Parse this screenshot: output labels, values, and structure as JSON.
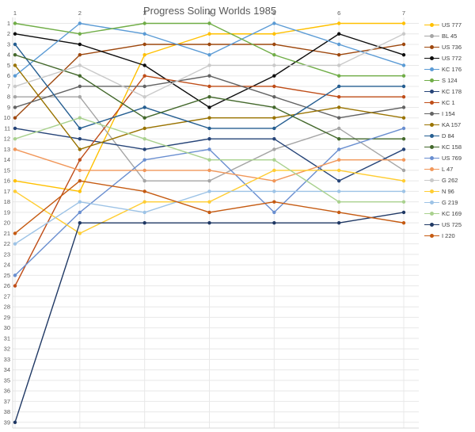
{
  "chart_data": {
    "type": "line",
    "title": "Progress Soling Worlds 1985",
    "xlabel": "",
    "ylabel": "",
    "categories": [
      "1",
      "2",
      "3",
      "4",
      "5",
      "6",
      "7"
    ],
    "y_axis": {
      "min": 1,
      "max": 39,
      "step": 1,
      "inverted": true,
      "meaning": "finishing position (1 = best)"
    },
    "grid": true,
    "legend_position": "right",
    "series": [
      {
        "name": "US 777",
        "color": "#FFC000",
        "values": [
          16,
          17,
          4,
          2,
          2,
          1,
          1
        ]
      },
      {
        "name": "BL 45",
        "color": "#A5A5A5",
        "values": [
          8,
          8,
          16,
          16,
          13,
          11,
          15
        ]
      },
      {
        "name": "US 736",
        "color": "#9E480E",
        "values": [
          10,
          4,
          3,
          3,
          3,
          4,
          3
        ]
      },
      {
        "name": "US 772",
        "color": "#0D0D0D",
        "values": [
          2,
          3,
          5,
          9,
          6,
          2,
          4
        ]
      },
      {
        "name": "KC 176",
        "color": "#5B9BD5",
        "values": [
          6,
          1,
          2,
          4,
          1,
          3,
          5
        ]
      },
      {
        "name": "S 124",
        "color": "#70AD47",
        "values": [
          1,
          2,
          1,
          1,
          4,
          6,
          6
        ]
      },
      {
        "name": "KC 178",
        "color": "#264478",
        "values": [
          11,
          12,
          13,
          12,
          12,
          16,
          13
        ]
      },
      {
        "name": "KC 1",
        "color": "#BF4D18",
        "values": [
          26,
          14,
          6,
          7,
          7,
          8,
          8
        ]
      },
      {
        "name": "I 154",
        "color": "#636363",
        "values": [
          9,
          7,
          7,
          6,
          8,
          10,
          9
        ]
      },
      {
        "name": "KA 157",
        "color": "#997300",
        "values": [
          5,
          13,
          11,
          10,
          10,
          9,
          10
        ]
      },
      {
        "name": "D 84",
        "color": "#255E91",
        "values": [
          3,
          11,
          9,
          11,
          11,
          7,
          7
        ]
      },
      {
        "name": "KC 158",
        "color": "#43682B",
        "values": [
          4,
          6,
          10,
          8,
          9,
          12,
          12
        ]
      },
      {
        "name": "US 769",
        "color": "#698ED0",
        "values": [
          25,
          19,
          14,
          13,
          19,
          13,
          11
        ]
      },
      {
        "name": "L 47",
        "color": "#F1975A",
        "values": [
          13,
          15,
          15,
          15,
          16,
          14,
          14
        ]
      },
      {
        "name": "G 262",
        "color": "#C9C9C9",
        "values": [
          7,
          5,
          8,
          5,
          5,
          5,
          2
        ]
      },
      {
        "name": "N 96",
        "color": "#FFCD33",
        "values": [
          17,
          21,
          18,
          18,
          15,
          15,
          16
        ]
      },
      {
        "name": "G 219",
        "color": "#9DC3E6",
        "values": [
          22,
          18,
          19,
          17,
          17,
          17,
          17
        ]
      },
      {
        "name": "KC 169",
        "color": "#A9D18E",
        "values": [
          12,
          10,
          12,
          14,
          14,
          18,
          18
        ]
      },
      {
        "name": "US 725",
        "color": "#1F3864",
        "values": [
          39,
          20,
          20,
          20,
          20,
          20,
          19
        ]
      },
      {
        "name": "I 220",
        "color": "#C55A11",
        "values": [
          21,
          16,
          17,
          19,
          18,
          19,
          20
        ]
      }
    ],
    "styles": {
      "grid_color": "#E8E8E8",
      "axis_line_color": "#D9D9D9",
      "tick_label_color": "#595959",
      "title_color": "#595959",
      "background": "#FFFFFF"
    }
  }
}
